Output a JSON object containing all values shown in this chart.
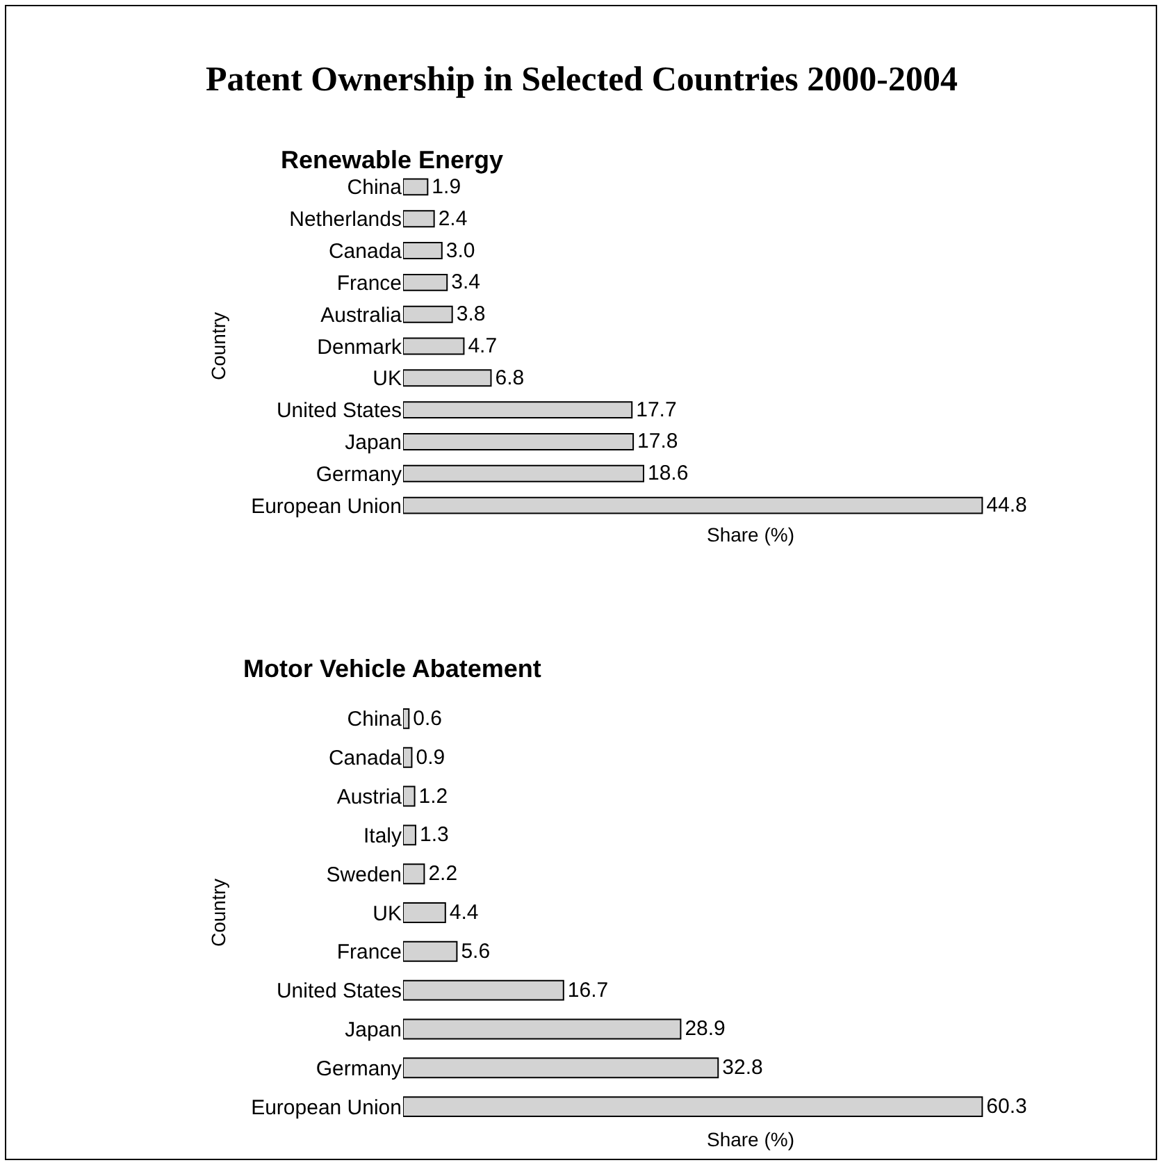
{
  "chart_data": [
    {
      "type": "bar",
      "orientation": "horizontal",
      "title": "Patent Ownership in Selected Countries 2000-2004",
      "subtitle": "Renewable Energy",
      "xlabel": "Share (%)",
      "ylabel": "Country",
      "categories": [
        "China",
        "Netherlands",
        "Canada",
        "France",
        "Australia",
        "Denmark",
        "UK",
        "United States",
        "Japan",
        "Germany",
        "European Union"
      ],
      "values": [
        1.9,
        2.4,
        3.0,
        3.4,
        3.8,
        4.7,
        6.8,
        17.7,
        17.8,
        18.6,
        44.8
      ],
      "value_labels": [
        "1.9",
        "2.4",
        "3.0",
        "3.4",
        "3.8",
        "4.7",
        "6.8",
        "17.7",
        "17.8",
        "18.6",
        "44.8"
      ],
      "color": "#d3d3d3",
      "tick_labels": "y"
    },
    {
      "type": "bar",
      "orientation": "horizontal",
      "title": "Motor Vehicle Abatement",
      "xlabel": "Share (%)",
      "ylabel": "Country",
      "categories": [
        "China",
        "Canada",
        "Austria",
        "Italy",
        "Sweden",
        "UK",
        "France",
        "United States",
        "Japan",
        "Germany",
        "European Union"
      ],
      "values": [
        0.6,
        0.9,
        1.2,
        1.3,
        2.2,
        4.4,
        5.6,
        16.7,
        28.9,
        32.8,
        60.3
      ],
      "value_labels": [
        "0.6",
        "0.9",
        "1.2",
        "1.3",
        "2.2",
        "4.4",
        "5.6",
        "16.7",
        "28.9",
        "32.8",
        "60.3"
      ],
      "color": "#d3d3d3",
      "tick_labels": "y"
    }
  ]
}
